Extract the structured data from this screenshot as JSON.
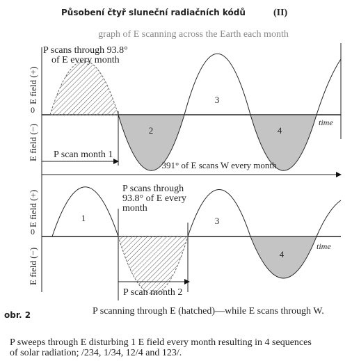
{
  "header": {
    "title": "Působení čtyř sluneční radiačních kódů",
    "part": "(II)"
  },
  "subtitle": "graph of E scanning across the Earth each month",
  "top_panel": {
    "annotation": [
      "P scans through 93.8°",
      "of E every month"
    ],
    "y_pos": "E field (+)",
    "y_neg": "E field (−)",
    "zero": "0",
    "regions": [
      "2",
      "3",
      "4"
    ],
    "time": "time",
    "scan": "P scan month 1",
    "e_scan": "391° of E scans W every month"
  },
  "bottom_panel": {
    "annotation": [
      "P  scans  through",
      "93.8°  of  E  every",
      "month"
    ],
    "y_pos": "E field (+)",
    "y_neg": "E field (−)",
    "zero": "0",
    "regions": [
      "1",
      "3",
      "4"
    ],
    "time": "time",
    "scan": "P scan month 2"
  },
  "figure_label": "obr. 2",
  "caption": "P scanning through E (hatched)—while E scans through W.",
  "footer": [
    "P sweeps through E disturbing 1 E field every month resulting in 4 sequences",
    "of solar radiation; /234, 1/34, 12/4 and 123/."
  ]
}
